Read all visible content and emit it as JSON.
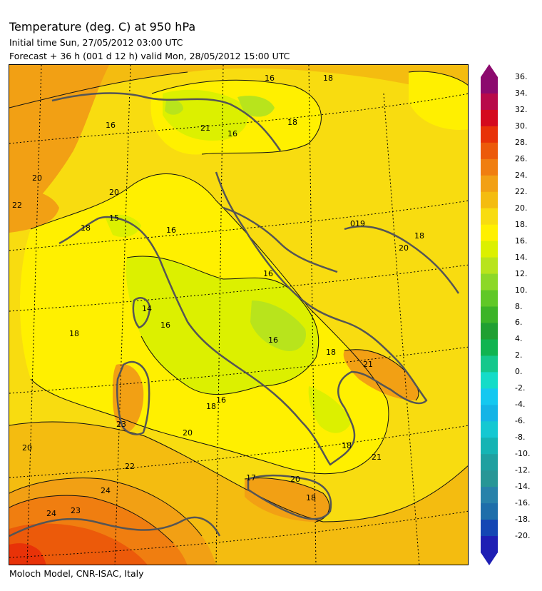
{
  "header": {
    "title": "Temperature (deg. C) at 950 hPa",
    "initial_time": "Initial time  Sun, 27/05/2012  03:00 UTC",
    "forecast": "Forecast  +  36 h  (001 d 12 h)  valid Mon, 28/05/2012 15:00 UTC"
  },
  "footer": "Moloch Model, CNR-ISAC, Italy",
  "colorbar": {
    "ticks": [
      "36.",
      "34.",
      "32.",
      "30.",
      "28.",
      "26.",
      "24.",
      "22.",
      "20.",
      "18.",
      "16.",
      "14.",
      "12.",
      "10.",
      "8.",
      "6.",
      "4.",
      "2.",
      "0.",
      "-2.",
      "-4.",
      "-6.",
      "-8.",
      "-10.",
      "-12.",
      "-14.",
      "-16.",
      "-18.",
      "-20."
    ],
    "colors": [
      "#8c0a6e",
      "#b80a4a",
      "#d40a1e",
      "#e83208",
      "#ec5a0a",
      "#f07e10",
      "#f2a014",
      "#f4bc10",
      "#f8dc10",
      "#fff000",
      "#dcf000",
      "#b8e41c",
      "#8cd828",
      "#60c828",
      "#3cb428",
      "#20a032",
      "#10b450",
      "#14c88c",
      "#14dcc8",
      "#14c8f0",
      "#14b4e6",
      "#14c8d2",
      "#14b4b4",
      "#1ea0a0",
      "#289696",
      "#2882aa",
      "#1e6eaa",
      "#1446b4",
      "#1e1eb4"
    ]
  },
  "map": {
    "contour_labels": [
      {
        "text": "16",
        "kind": "temperature"
      },
      {
        "text": "18",
        "kind": "temperature"
      },
      {
        "text": "16",
        "kind": "temperature"
      },
      {
        "text": "21",
        "kind": "temperature"
      },
      {
        "text": "16",
        "kind": "temperature"
      },
      {
        "text": "18",
        "kind": "temperature"
      },
      {
        "text": "20",
        "kind": "temperature"
      },
      {
        "text": "20",
        "kind": "temperature"
      },
      {
        "text": "22",
        "kind": "temperature"
      },
      {
        "text": "15",
        "kind": "temperature"
      },
      {
        "text": "18",
        "kind": "temperature"
      },
      {
        "text": "16",
        "kind": "temperature"
      },
      {
        "text": "019",
        "kind": "temperature"
      },
      {
        "text": "18",
        "kind": "temperature"
      },
      {
        "text": "20",
        "kind": "temperature"
      },
      {
        "text": "16",
        "kind": "temperature"
      },
      {
        "text": "14",
        "kind": "temperature"
      },
      {
        "text": "16",
        "kind": "temperature"
      },
      {
        "text": "18",
        "kind": "temperature"
      },
      {
        "text": "16",
        "kind": "temperature"
      },
      {
        "text": "21",
        "kind": "temperature"
      },
      {
        "text": "18",
        "kind": "temperature"
      },
      {
        "text": "16",
        "kind": "temperature"
      },
      {
        "text": "18",
        "kind": "temperature"
      },
      {
        "text": "23",
        "kind": "temperature"
      },
      {
        "text": "20",
        "kind": "temperature"
      },
      {
        "text": "20",
        "kind": "temperature"
      },
      {
        "text": "22",
        "kind": "temperature"
      },
      {
        "text": "17",
        "kind": "temperature"
      },
      {
        "text": "20",
        "kind": "temperature"
      },
      {
        "text": "18",
        "kind": "temperature"
      },
      {
        "text": "21",
        "kind": "temperature"
      },
      {
        "text": "18",
        "kind": "temperature"
      },
      {
        "text": "24",
        "kind": "temperature"
      },
      {
        "text": "24",
        "kind": "temperature"
      },
      {
        "text": "23",
        "kind": "temperature"
      }
    ]
  }
}
